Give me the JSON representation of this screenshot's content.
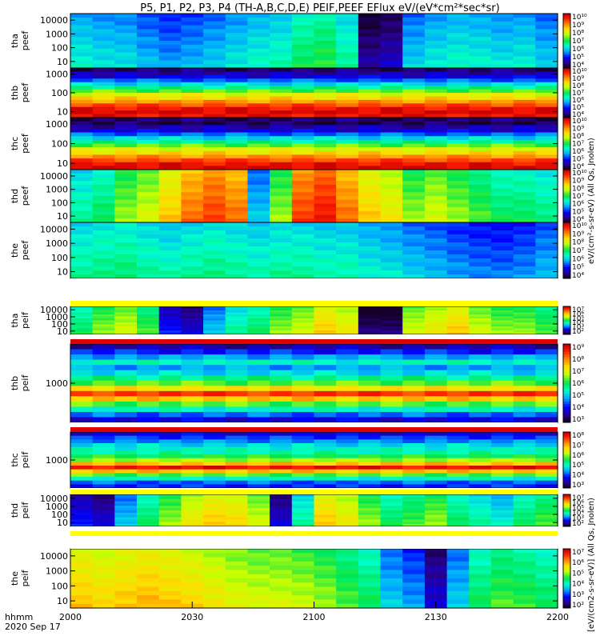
{
  "title": "P5, P1, P2, P3, P4 (TH-A,B,C,D,E) PEIF,PEEF EFlux eV/(eV*cm²*sec*sr)",
  "x_axis": {
    "label_line1": "hhmm",
    "label_line2": "2020 Sep 17",
    "ticks": [
      "2000",
      "2030",
      "2100",
      "2130",
      "2200"
    ]
  },
  "colorbar_units": {
    "peef": "eV/(cm²-s-sr-eV) (All Qs, Jnolen)",
    "peif": "[eV/(cm2-s-sr-eV)] (All Qs, Jnolen)"
  },
  "chart_data": [
    {
      "type": "heatmap",
      "probe": "tha",
      "product": "peef",
      "label_top": "tha",
      "label_bottom": "peef",
      "yticks": [
        "10",
        "100",
        "1000",
        "10000"
      ],
      "colorbar_ticks": [
        "10^4",
        "10^5",
        "10^6",
        "10^7",
        "10^8",
        "10^9",
        "10^10"
      ],
      "time_range": [
        "2000",
        "2200"
      ],
      "columns_colormap_level": [
        0.35,
        0.33,
        0.32,
        0.28,
        0.25,
        0.27,
        0.3,
        0.33,
        0.36,
        0.38,
        0.45,
        0.48,
        0.4,
        0.05,
        0.08,
        0.3,
        0.34,
        0.36,
        0.35,
        0.33,
        0.34,
        0.3
      ]
    },
    {
      "type": "heatmap",
      "probe": "thb",
      "product": "peef",
      "label_top": "thb",
      "label_bottom": "peef",
      "yticks": [
        "10",
        "100",
        "1000"
      ],
      "colorbar_ticks": [
        "10^4",
        "10^5",
        "10^6",
        "10^7",
        "10^8",
        "10^9",
        "10^10"
      ],
      "time_range": [
        "2000",
        "2200"
      ],
      "row_colormap_level_top_to_bottom": [
        0.05,
        0.1,
        0.15,
        0.25,
        0.35,
        0.45,
        0.55,
        0.65,
        0.72,
        0.8,
        0.88,
        0.95,
        0.98,
        0.95
      ]
    },
    {
      "type": "heatmap",
      "probe": "thc",
      "product": "peef",
      "label_top": "thc",
      "label_bottom": "peef",
      "yticks": [
        "10",
        "100",
        "1000"
      ],
      "colorbar_ticks": [
        "10^4",
        "10^5",
        "10^6",
        "10^7",
        "10^8",
        "10^9",
        "10^10"
      ],
      "time_range": [
        "2000",
        "2200"
      ],
      "row_colormap_level_top_to_bottom": [
        0.05,
        0.03,
        0.1,
        0.15,
        0.25,
        0.35,
        0.45,
        0.55,
        0.65,
        0.72,
        0.8,
        0.88,
        0.95,
        0.98
      ]
    },
    {
      "type": "heatmap",
      "probe": "thd",
      "product": "peef",
      "label_top": "thd",
      "label_bottom": "peef",
      "yticks": [
        "10",
        "100",
        "1000",
        "10000"
      ],
      "colorbar_ticks": [
        "10^4",
        "10^5",
        "10^6",
        "10^7",
        "10^8",
        "10^9",
        "10^10"
      ],
      "time_range": [
        "2000",
        "2200"
      ],
      "columns_colormap_level": [
        0.4,
        0.45,
        0.55,
        0.6,
        0.7,
        0.8,
        0.85,
        0.8,
        0.3,
        0.55,
        0.85,
        0.9,
        0.8,
        0.7,
        0.65,
        0.55,
        0.6,
        0.55,
        0.5,
        0.45,
        0.45,
        0.42
      ]
    },
    {
      "type": "heatmap",
      "probe": "the",
      "product": "peef",
      "label_top": "the",
      "label_bottom": "peef",
      "yticks": [
        "10",
        "100",
        "1000",
        "10000"
      ],
      "colorbar_ticks": [
        "10^4",
        "10^5",
        "10^6",
        "10^7",
        "10^8",
        "10^9",
        "10^10"
      ],
      "time_range": [
        "2000",
        "2200"
      ],
      "columns_colormap_level": [
        0.4,
        0.42,
        0.43,
        0.4,
        0.38,
        0.4,
        0.42,
        0.4,
        0.38,
        0.4,
        0.4,
        0.38,
        0.38,
        0.35,
        0.33,
        0.3,
        0.28,
        0.25,
        0.23,
        0.22,
        0.24,
        0.28
      ]
    },
    {
      "type": "heatmap",
      "probe": "tha",
      "product": "peif",
      "label_top": "tha",
      "label_bottom": "peif",
      "yticks": [
        "10",
        "100",
        "1000",
        "10000"
      ],
      "colorbar_ticks": [
        "10^2",
        "10^3",
        "10^4",
        "10^5",
        "10^6",
        "10^7"
      ],
      "time_range": [
        "2000",
        "2200"
      ],
      "columns_colormap_level": [
        0.45,
        0.55,
        0.6,
        0.5,
        0.15,
        0.1,
        0.3,
        0.4,
        0.45,
        0.55,
        0.6,
        0.7,
        0.65,
        0.02,
        0.02,
        0.6,
        0.65,
        0.7,
        0.6,
        0.55,
        0.55,
        0.5
      ]
    },
    {
      "type": "heatmap",
      "probe": "thb",
      "product": "peif",
      "label_top": "thb",
      "label_bottom": "peif",
      "yticks": [
        "1000"
      ],
      "colorbar_ticks": [
        "10^3",
        "10^4",
        "10^5",
        "10^6",
        "10^7",
        "10^8",
        "10^9"
      ],
      "time_range": [
        "2000",
        "2200"
      ],
      "row_colormap_level_top_to_bottom": [
        0.1,
        0.2,
        0.3,
        0.4,
        0.3,
        0.35,
        0.45,
        0.55,
        0.7,
        0.9,
        0.75,
        0.55,
        0.4,
        0.25,
        0.15
      ]
    },
    {
      "type": "heatmap",
      "probe": "thc",
      "product": "peif",
      "label_top": "thc",
      "label_bottom": "peif",
      "yticks": [
        "1000"
      ],
      "colorbar_ticks": [
        "10^3",
        "10^4",
        "10^5",
        "10^6",
        "10^7",
        "10^8"
      ],
      "time_range": [
        "2000",
        "2200"
      ],
      "row_colormap_level_top_to_bottom": [
        0.15,
        0.22,
        0.28,
        0.35,
        0.4,
        0.42,
        0.5,
        0.6,
        0.75,
        0.95,
        0.75,
        0.55,
        0.4,
        0.25,
        0.2
      ]
    },
    {
      "type": "heatmap",
      "probe": "thd",
      "product": "peif",
      "label_top": "thd",
      "label_bottom": "peif",
      "yticks": [
        "10",
        "100",
        "1000",
        "10000"
      ],
      "colorbar_ticks": [
        "10^2",
        "10^3",
        "10^4",
        "10^5",
        "10^6",
        "10^7"
      ],
      "time_range": [
        "2000",
        "2200"
      ],
      "columns_colormap_level": [
        0.15,
        0.1,
        0.3,
        0.45,
        0.55,
        0.65,
        0.7,
        0.68,
        0.6,
        0.1,
        0.4,
        0.7,
        0.65,
        0.55,
        0.45,
        0.5,
        0.55,
        0.45,
        0.4,
        0.35,
        0.45,
        0.5
      ]
    },
    {
      "type": "heatmap",
      "probe": "the",
      "product": "peif",
      "label_top": "the",
      "label_bottom": "peif",
      "yticks": [
        "10",
        "100",
        "1000",
        "10000"
      ],
      "colorbar_ticks": [
        "10^2",
        "10^3",
        "10^4",
        "10^5",
        "10^6",
        "10^7"
      ],
      "time_range": [
        "2000",
        "2200"
      ],
      "columns_colormap_level": [
        0.7,
        0.68,
        0.7,
        0.72,
        0.7,
        0.68,
        0.65,
        0.62,
        0.6,
        0.6,
        0.58,
        0.55,
        0.5,
        0.45,
        0.3,
        0.25,
        0.1,
        0.3,
        0.45,
        0.5,
        0.48,
        0.45
      ]
    }
  ]
}
